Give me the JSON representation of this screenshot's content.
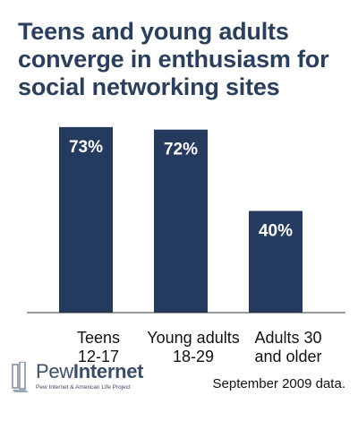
{
  "chart_data": {
    "type": "bar",
    "title": [
      "Teens and young adults",
      "converge in enthusiasm for",
      "social networking sites"
    ],
    "categories": [
      [
        "Teens",
        "12-17"
      ],
      [
        "Young adults",
        "18-29"
      ],
      [
        "Adults 30",
        "and older"
      ]
    ],
    "values": [
      73,
      72,
      40
    ],
    "data_labels": [
      "73%",
      "72%",
      "40%"
    ],
    "ylim": [
      0,
      80
    ],
    "grid": false,
    "bar_color": "#243a5e",
    "label_color": "#ffffff"
  },
  "footer": {
    "logo_word1": "Pew",
    "logo_word2": "Internet",
    "logo_sub": "Pew Internet & American Life Project",
    "note": "September 2009 data."
  }
}
